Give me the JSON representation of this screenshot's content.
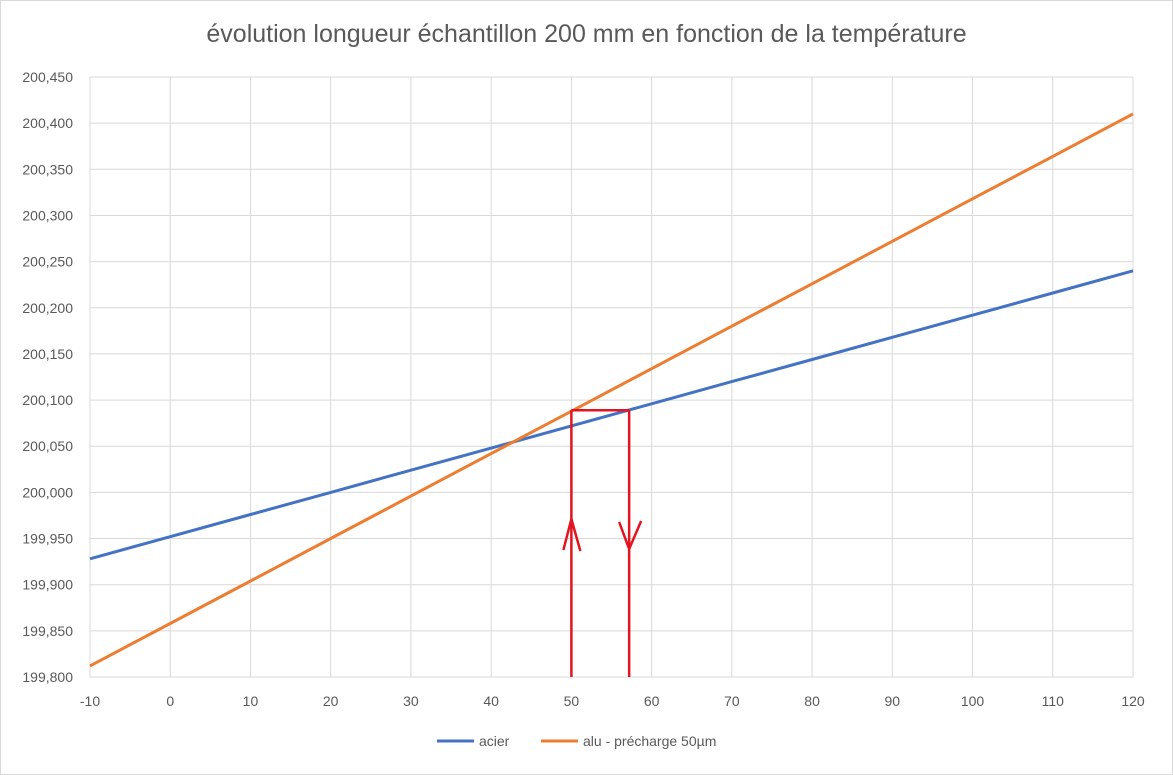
{
  "chart_data": {
    "type": "line",
    "title": "évolution longueur échantillon 200 mm en fonction de la température",
    "xlabel": "",
    "ylabel": "",
    "xlim": [
      -10,
      120
    ],
    "ylim": [
      199.8,
      200.45
    ],
    "x_ticks": [
      "-10",
      "0",
      "10",
      "20",
      "30",
      "40",
      "50",
      "60",
      "70",
      "80",
      "90",
      "100",
      "110",
      "120"
    ],
    "y_ticks": [
      "199,800",
      "199,850",
      "199,900",
      "199,950",
      "200,000",
      "200,050",
      "200,100",
      "200,150",
      "200,200",
      "200,250",
      "200,300",
      "200,350",
      "200,400",
      "200,450"
    ],
    "grid": true,
    "legend_position": "bottom",
    "series": [
      {
        "name": "acier",
        "color": "#4472c4",
        "x": [
          -10,
          0,
          10,
          20,
          30,
          40,
          50,
          60,
          70,
          80,
          90,
          100,
          110,
          120
        ],
        "y": [
          199.928,
          199.952,
          199.976,
          200.0,
          200.024,
          200.048,
          200.072,
          200.096,
          200.12,
          200.144,
          200.168,
          200.192,
          200.216,
          200.24
        ]
      },
      {
        "name": "alu - précharge 50µm",
        "color": "#ed7d31",
        "x": [
          -10,
          0,
          10,
          20,
          30,
          40,
          50,
          60,
          70,
          80,
          90,
          100,
          110,
          120
        ],
        "y": [
          199.812,
          199.858,
          199.904,
          199.95,
          199.996,
          200.042,
          200.088,
          200.134,
          200.18,
          200.226,
          200.272,
          200.318,
          200.364,
          200.41
        ]
      }
    ],
    "annotations": {
      "color": "#e3141f",
      "up_arrow_x": 50,
      "down_arrow_x": 57.2,
      "level_y": 200.089
    }
  }
}
